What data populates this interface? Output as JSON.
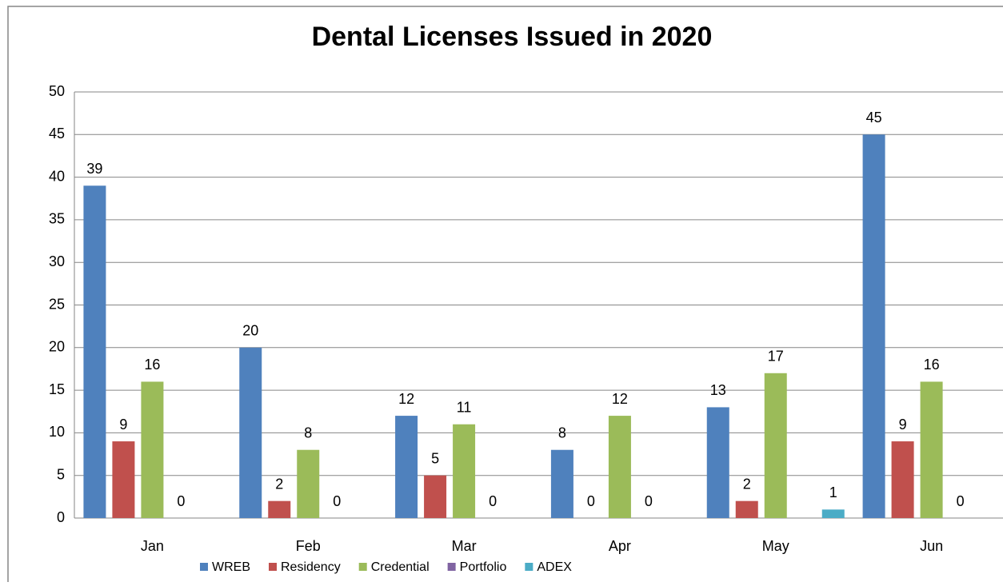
{
  "chart_data": {
    "type": "bar",
    "title": "Dental Licenses Issued in 2020",
    "categories": [
      "Jan",
      "Feb",
      "Mar",
      "Apr",
      "May",
      "Jun"
    ],
    "series": [
      {
        "name": "WREB",
        "color": "#4f81bd",
        "values": [
          39,
          20,
          12,
          8,
          13,
          45
        ]
      },
      {
        "name": "Residency",
        "color": "#c0504d",
        "values": [
          9,
          2,
          5,
          0,
          2,
          9
        ]
      },
      {
        "name": "Credential",
        "color": "#9bbb59",
        "values": [
          16,
          8,
          11,
          12,
          17,
          16
        ]
      },
      {
        "name": "Portfolio",
        "color": "#8064a2",
        "values": [
          0,
          0,
          0,
          0,
          null,
          0
        ]
      },
      {
        "name": "ADEX",
        "color": "#4bacc6",
        "values": [
          null,
          null,
          null,
          null,
          1,
          null
        ]
      }
    ],
    "ylim": [
      0,
      50
    ],
    "yticks": [
      0,
      5,
      10,
      15,
      20,
      25,
      30,
      35,
      40,
      45,
      50
    ],
    "grid": true,
    "legend": "bottom"
  }
}
